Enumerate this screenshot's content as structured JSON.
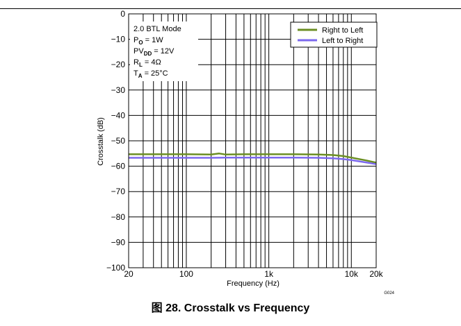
{
  "figure": {
    "caption": "图 28. Crosstalk vs Frequency",
    "code": "G024"
  },
  "conditions": {
    "mode": "2.0 BTL Mode",
    "po_main": "P",
    "po_sub": "O",
    "po_val": " = 1W",
    "pvdd_main": "PV",
    "pvdd_sub": "DD",
    "pvdd_val": " = 12V",
    "rl_main": "R",
    "rl_sub": "L",
    "rl_val": " = 4Ω",
    "ta_main": "T",
    "ta_sub": "A",
    "ta_val": " = 25°C"
  },
  "chart_data": {
    "type": "line",
    "xlabel": "Frequency (Hz)",
    "ylabel": "Crosstalk (dB)",
    "x_scale": "log",
    "xlim": [
      20,
      20000
    ],
    "ylim": [
      -100,
      0
    ],
    "x_ticks": [
      {
        "value": 20,
        "label": "20"
      },
      {
        "value": 100,
        "label": "100"
      },
      {
        "value": 1000,
        "label": "1k"
      },
      {
        "value": 10000,
        "label": "10k"
      },
      {
        "value": 20000,
        "label": "20k"
      }
    ],
    "y_ticks": [
      0,
      -10,
      -20,
      -30,
      -40,
      -50,
      -60,
      -70,
      -80,
      -90,
      -100
    ],
    "y_tick_labels": [
      "0",
      "−10",
      "−20",
      "−30",
      "−40",
      "−50",
      "−60",
      "−70",
      "−80",
      "−90",
      "−100"
    ],
    "grid": true,
    "legend_position": "top-right",
    "series": [
      {
        "name": "Right to Left",
        "color": "#6b8e23",
        "x": [
          20,
          50,
          100,
          200,
          250,
          300,
          500,
          1000,
          2000,
          4000,
          6000,
          8000,
          10000,
          15000,
          20000
        ],
        "y": [
          -55.3,
          -55.3,
          -55.3,
          -55.4,
          -55.0,
          -55.4,
          -55.3,
          -55.3,
          -55.3,
          -55.4,
          -55.6,
          -56.0,
          -56.6,
          -57.7,
          -58.6
        ]
      },
      {
        "name": "Left to Right",
        "color": "#7b68ee",
        "x": [
          20,
          50,
          100,
          200,
          300,
          500,
          1000,
          2000,
          4000,
          6000,
          8000,
          10000,
          15000,
          20000
        ],
        "y": [
          -56.7,
          -56.7,
          -56.7,
          -56.7,
          -56.6,
          -56.6,
          -56.6,
          -56.6,
          -56.7,
          -56.9,
          -57.2,
          -57.6,
          -58.5,
          -59.2
        ]
      }
    ]
  }
}
